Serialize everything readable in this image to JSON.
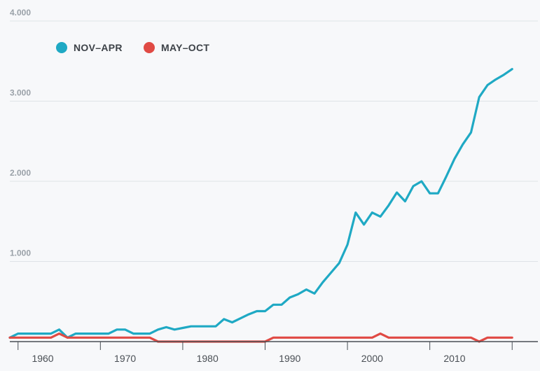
{
  "chart_data": {
    "type": "line",
    "x": [
      1957,
      1958,
      1959,
      1960,
      1961,
      1962,
      1963,
      1964,
      1965,
      1966,
      1967,
      1968,
      1969,
      1970,
      1971,
      1972,
      1973,
      1974,
      1975,
      1976,
      1977,
      1978,
      1979,
      1980,
      1981,
      1982,
      1983,
      1984,
      1985,
      1986,
      1987,
      1988,
      1989,
      1990,
      1991,
      1992,
      1993,
      1994,
      1995,
      1996,
      1997,
      1998,
      1999,
      2000,
      2001,
      2002,
      2003,
      2004,
      2005,
      2006,
      2007,
      2008,
      2009,
      2010,
      2011,
      2012,
      2013,
      2014,
      2015,
      2016,
      2017,
      2018
    ],
    "series": [
      {
        "name": "NOV–APR",
        "color": "#1fa9c4",
        "values": [
          50,
          100,
          100,
          100,
          100,
          100,
          150,
          50,
          100,
          100,
          100,
          100,
          100,
          150,
          150,
          100,
          100,
          100,
          150,
          180,
          150,
          170,
          190,
          190,
          190,
          190,
          280,
          240,
          290,
          340,
          380,
          380,
          460,
          460,
          550,
          590,
          650,
          600,
          740,
          860,
          980,
          1210,
          1610,
          1460,
          1610,
          1560,
          1700,
          1860,
          1750,
          1940,
          2000,
          1850,
          1850,
          2060,
          2280,
          2460,
          2610,
          3050,
          3200,
          3270,
          3330,
          3400
        ]
      },
      {
        "name": "MAY–OCT",
        "color": "#e04a44",
        "values": [
          50,
          50,
          50,
          50,
          50,
          50,
          100,
          50,
          50,
          50,
          50,
          50,
          50,
          50,
          50,
          50,
          50,
          50,
          0,
          0,
          0,
          0,
          0,
          0,
          0,
          0,
          0,
          0,
          0,
          0,
          0,
          0,
          50,
          50,
          50,
          50,
          50,
          50,
          50,
          50,
          50,
          50,
          50,
          50,
          50,
          100,
          50,
          50,
          50,
          50,
          50,
          50,
          50,
          50,
          50,
          50,
          50,
          0,
          50,
          50,
          50,
          50
        ]
      }
    ],
    "yticks": [
      "4.000",
      "3.000",
      "2.000",
      "1.000"
    ],
    "ytick_values": [
      4000,
      3000,
      2000,
      1000
    ],
    "xticks": [
      "1960",
      "1970",
      "1980",
      "1990",
      "2000",
      "2010"
    ],
    "xtick_values": [
      1960,
      1970,
      1980,
      1990,
      2000,
      2010
    ],
    "ylim": [
      0,
      4000
    ],
    "xlim": [
      1957,
      2019
    ],
    "grid": true,
    "legend_position": "top-left",
    "title": "",
    "xlabel": "",
    "ylabel": ""
  }
}
